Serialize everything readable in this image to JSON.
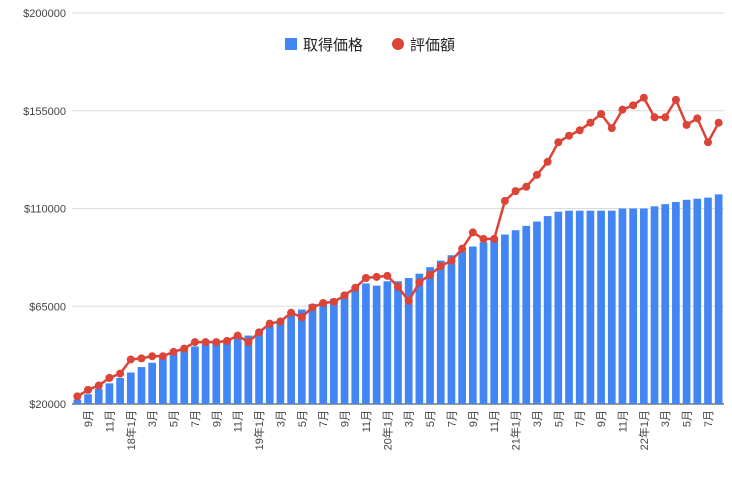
{
  "chart_data": {
    "type": "bar+line",
    "legend_position": "top-center",
    "grid": true,
    "ylim": [
      20000,
      200000
    ],
    "y_ticks": [
      {
        "value": 20000,
        "label": "$20000"
      },
      {
        "value": 65000,
        "label": "$65000"
      },
      {
        "value": 110000,
        "label": "$110000"
      },
      {
        "value": 155000,
        "label": "$155000"
      },
      {
        "value": 200000,
        "label": "$200000"
      }
    ],
    "x_tick_labels": [
      "9月",
      "11月",
      "18年1月",
      "3月",
      "5月",
      "7月",
      "9月",
      "11月",
      "19年1月",
      "3月",
      "5月",
      "7月",
      "9月",
      "11月",
      "20年1月",
      "3月",
      "5月",
      "7月",
      "9月",
      "11月",
      "21年1月",
      "3月",
      "5月",
      "7月",
      "9月",
      "11月",
      "22年1月",
      "3月",
      "5月",
      "7月"
    ],
    "x_tick_every": 2,
    "x_tick_first_index": 1,
    "series": [
      {
        "name": "取得価格",
        "kind": "bar",
        "color": "#4285f4",
        "values": [
          22000,
          24500,
          27000,
          29500,
          32000,
          34500,
          37000,
          39000,
          41000,
          43000,
          45000,
          46500,
          47500,
          48500,
          49500,
          50500,
          51500,
          53000,
          56000,
          58500,
          61000,
          63500,
          66000,
          67000,
          68500,
          71000,
          73000,
          75500,
          74500,
          76500,
          76500,
          78000,
          80000,
          83000,
          86000,
          88500,
          90500,
          92500,
          94500,
          96000,
          98000,
          100000,
          102000,
          104000,
          106500,
          108500,
          109000,
          109000,
          109000,
          109000,
          109000,
          110000,
          110000,
          110000,
          111000,
          112000,
          113000,
          114000,
          114500,
          115000,
          116500
        ]
      },
      {
        "name": "評価額",
        "kind": "line",
        "color": "#db4437",
        "values": [
          23500,
          26500,
          28500,
          32000,
          34000,
          40500,
          41000,
          42000,
          42000,
          44000,
          45500,
          48500,
          48500,
          48500,
          49000,
          51500,
          48500,
          53000,
          57000,
          58000,
          62000,
          60000,
          64500,
          66500,
          67000,
          70000,
          73500,
          78000,
          78500,
          79000,
          74000,
          67500,
          76000,
          79500,
          83500,
          86000,
          91500,
          99000,
          96000,
          96000,
          113500,
          118000,
          120000,
          125500,
          131500,
          140500,
          143500,
          146000,
          149500,
          153500,
          147000,
          155500,
          157500,
          161000,
          152000,
          152000,
          160000,
          148500,
          151500,
          140500,
          149500
        ]
      }
    ]
  }
}
